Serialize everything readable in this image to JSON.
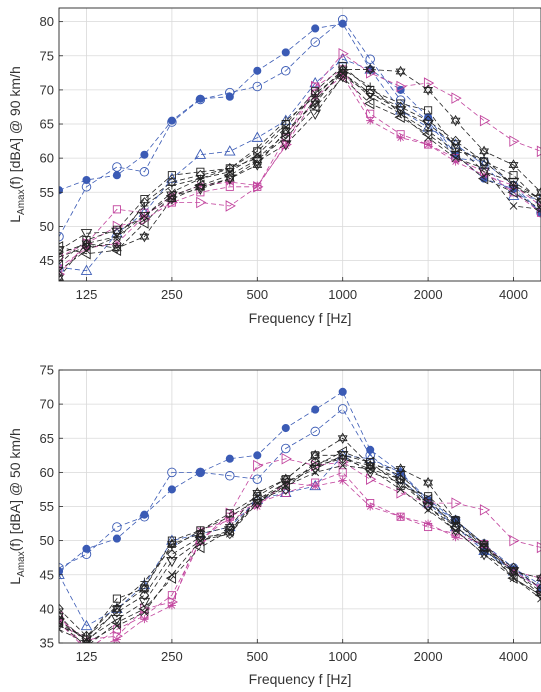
{
  "chart_data": [
    {
      "type": "line",
      "xscale": "log",
      "xlim": [
        100,
        5000
      ],
      "ylim": [
        42,
        82
      ],
      "grid": true,
      "xticks": [
        125,
        250,
        500,
        1000,
        2000,
        4000
      ],
      "xtick_labels": [
        "125",
        "250",
        "500",
        "1000",
        "2000",
        "4000"
      ],
      "yticks": [
        45,
        50,
        55,
        60,
        65,
        70,
        75,
        80
      ],
      "ytick_labels": [
        "45",
        "50",
        "55",
        "60",
        "65",
        "70",
        "75",
        "80"
      ],
      "xlabel": "Frequency f [Hz]",
      "ylabel_main": "L",
      "ylabel_sub": "Amax",
      "ylabel_rest": "(f) [dBA] @ 90 km/h",
      "x": [
        100,
        125,
        160,
        200,
        250,
        315,
        400,
        500,
        630,
        800,
        1000,
        1250,
        1600,
        2000,
        2500,
        3150,
        4000,
        5000
      ],
      "series": [
        {
          "color": "#3b5bb5",
          "marker": "filled-circle",
          "values": [
            55.3,
            56.8,
            57.5,
            60.5,
            65.5,
            68.7,
            69.0,
            72.8,
            75.5,
            79.0,
            79.7,
            73.0,
            70.0,
            66.0,
            60.5,
            57.0,
            55.5,
            52.0
          ]
        },
        {
          "color": "#3b5bb5",
          "marker": "open-circle",
          "values": [
            48.5,
            55.8,
            58.7,
            58.0,
            65.3,
            68.6,
            69.6,
            70.5,
            72.8,
            77.0,
            80.3,
            74.5,
            68.5,
            65.5,
            60.0,
            59.5,
            56.0,
            52.0
          ]
        },
        {
          "color": "#3b5bb5",
          "marker": "triangle-up",
          "values": [
            44.0,
            43.5,
            49.0,
            52.0,
            57.0,
            60.5,
            61.0,
            63.0,
            65.5,
            71.0,
            74.5,
            73.0,
            67.0,
            64.5,
            62.0,
            59.0,
            54.5,
            54.0
          ]
        },
        {
          "color": "#c2459e",
          "marker": "triangle-right",
          "values": [
            43.0,
            47.5,
            50.0,
            51.0,
            53.5,
            53.5,
            53.0,
            55.8,
            62.0,
            70.5,
            75.3,
            72.5,
            70.5,
            71.0,
            68.8,
            65.5,
            62.5,
            61.0
          ]
        },
        {
          "color": "#c2459e",
          "marker": "asterisk",
          "values": [
            44.0,
            46.8,
            47.5,
            51.5,
            54.5,
            56.0,
            56.5,
            56.0,
            61.8,
            69.0,
            72.0,
            65.5,
            63.0,
            62.0,
            59.5,
            57.5,
            56.0,
            53.0
          ]
        },
        {
          "color": "#c2459e",
          "marker": "square",
          "values": [
            45.5,
            47.5,
            52.5,
            52.0,
            53.5,
            55.0,
            55.8,
            55.8,
            63.0,
            70.5,
            73.0,
            66.5,
            63.5,
            62.0,
            60.0,
            58.0,
            55.0,
            52.0
          ]
        },
        {
          "color": "#222222",
          "marker": "triangle-down",
          "values": [
            46.5,
            49.0,
            49.2,
            51.5,
            54.5,
            55.5,
            57.0,
            59.5,
            62.0,
            66.5,
            72.0,
            69.5,
            67.0,
            65.0,
            62.0,
            58.0,
            56.5,
            54.0
          ]
        },
        {
          "color": "#222222",
          "marker": "diamond",
          "values": [
            45.5,
            47.0,
            47.5,
            53.5,
            56.5,
            57.5,
            58.5,
            60.0,
            63.5,
            68.5,
            72.5,
            69.5,
            67.5,
            65.5,
            62.5,
            59.5,
            56.0,
            53.5
          ]
        },
        {
          "color": "#222222",
          "marker": "hexagram",
          "values": [
            42.5,
            47.5,
            46.8,
            48.5,
            54.0,
            55.8,
            57.0,
            59.0,
            64.0,
            68.0,
            73.0,
            73.0,
            72.7,
            70.0,
            65.5,
            61.0,
            59.0,
            55.0
          ]
        },
        {
          "color": "#222222",
          "marker": "triangle-left",
          "values": [
            47.0,
            46.0,
            46.5,
            50.5,
            54.5,
            56.0,
            57.5,
            59.8,
            63.0,
            67.5,
            71.8,
            68.0,
            66.0,
            63.5,
            60.5,
            57.0,
            55.0,
            52.5
          ]
        },
        {
          "color": "#222222",
          "marker": "x",
          "values": [
            43.5,
            46.5,
            48.5,
            51.5,
            55.0,
            57.0,
            58.0,
            60.5,
            64.5,
            69.5,
            72.5,
            69.0,
            66.5,
            63.0,
            60.0,
            58.5,
            53.0,
            52.5
          ]
        },
        {
          "color": "#222222",
          "marker": "square",
          "values": [
            44.5,
            48.0,
            49.5,
            54.0,
            57.5,
            58.0,
            58.5,
            61.0,
            65.0,
            69.8,
            73.5,
            70.0,
            68.0,
            67.0,
            61.5,
            59.5,
            57.5,
            53.5
          ]
        },
        {
          "color": "#222222",
          "marker": "plus",
          "values": [
            46.0,
            47.5,
            48.5,
            53.0,
            56.0,
            57.0,
            58.5,
            61.5,
            65.5,
            69.0,
            73.0,
            70.5,
            66.5,
            64.0,
            61.0,
            60.0,
            56.0,
            54.0
          ]
        }
      ]
    },
    {
      "type": "line",
      "xscale": "log",
      "xlim": [
        100,
        5000
      ],
      "ylim": [
        35,
        75
      ],
      "grid": true,
      "xticks": [
        125,
        250,
        500,
        1000,
        2000,
        4000
      ],
      "xtick_labels": [
        "125",
        "250",
        "500",
        "1000",
        "2000",
        "4000"
      ],
      "yticks": [
        35,
        40,
        45,
        50,
        55,
        60,
        65,
        70,
        75
      ],
      "ytick_labels": [
        "35",
        "40",
        "45",
        "50",
        "55",
        "60",
        "65",
        "70",
        "75"
      ],
      "xlabel": "Frequency f [Hz]",
      "ylabel_main": "L",
      "ylabel_sub": "Amax",
      "ylabel_rest": "(f) [dBA] @ 50 km/h",
      "x": [
        100,
        125,
        160,
        200,
        250,
        315,
        400,
        500,
        630,
        800,
        1000,
        1250,
        1600,
        2000,
        2500,
        3150,
        4000,
        5000
      ],
      "series": [
        {
          "color": "#3b5bb5",
          "marker": "filled-circle",
          "values": [
            45.5,
            48.8,
            50.3,
            53.8,
            57.5,
            60.0,
            62.0,
            62.5,
            66.5,
            69.2,
            71.8,
            63.3,
            60.0,
            56.0,
            53.0,
            48.5,
            45.8,
            43.0
          ]
        },
        {
          "color": "#3b5bb5",
          "marker": "open-circle",
          "values": [
            46.0,
            48.0,
            52.0,
            53.5,
            60.0,
            60.0,
            59.5,
            59.0,
            63.5,
            66.0,
            69.3,
            62.5,
            59.0,
            55.5,
            53.0,
            49.5,
            46.0,
            43.5
          ]
        },
        {
          "color": "#3b5bb5",
          "marker": "triangle-up",
          "values": [
            45.0,
            37.5,
            40.0,
            43.5,
            50.0,
            51.0,
            52.0,
            56.0,
            57.0,
            58.0,
            62.5,
            62.0,
            60.0,
            55.5,
            52.0,
            48.5,
            45.5,
            43.0
          ]
        },
        {
          "color": "#c2459e",
          "marker": "triangle-right",
          "values": [
            38.5,
            35.5,
            36.0,
            40.0,
            41.0,
            50.0,
            54.0,
            61.0,
            62.0,
            61.0,
            61.5,
            59.0,
            57.0,
            55.5,
            55.5,
            54.5,
            50.0,
            49.0
          ]
        },
        {
          "color": "#c2459e",
          "marker": "asterisk",
          "values": [
            38.0,
            34.0,
            35.5,
            38.5,
            40.5,
            51.5,
            53.0,
            55.0,
            58.5,
            58.0,
            58.8,
            55.0,
            53.5,
            52.5,
            50.5,
            49.5,
            45.5,
            44.5
          ]
        },
        {
          "color": "#c2459e",
          "marker": "square",
          "values": [
            39.0,
            34.0,
            37.0,
            39.0,
            42.0,
            50.0,
            53.5,
            55.5,
            57.0,
            58.5,
            60.0,
            55.5,
            53.5,
            52.0,
            51.0,
            49.5,
            45.5,
            43.0
          ]
        },
        {
          "color": "#222222",
          "marker": "triangle-down",
          "values": [
            38.0,
            35.5,
            38.5,
            41.0,
            47.0,
            50.0,
            51.5,
            55.5,
            58.5,
            60.5,
            62.5,
            60.0,
            58.5,
            55.0,
            51.5,
            48.0,
            45.5,
            42.0
          ]
        },
        {
          "color": "#222222",
          "marker": "diamond",
          "values": [
            40.0,
            36.0,
            39.5,
            42.0,
            48.0,
            50.5,
            51.0,
            56.0,
            57.5,
            61.5,
            62.0,
            60.5,
            59.0,
            55.0,
            52.0,
            49.0,
            46.0,
            43.0
          ]
        },
        {
          "color": "#222222",
          "marker": "hexagram",
          "values": [
            39.0,
            35.0,
            40.0,
            43.0,
            49.5,
            51.0,
            52.0,
            57.0,
            59.0,
            62.5,
            65.0,
            61.0,
            60.5,
            58.5,
            53.0,
            49.5,
            45.5,
            44.5
          ]
        },
        {
          "color": "#222222",
          "marker": "triangle-left",
          "values": [
            38.0,
            34.5,
            38.0,
            40.0,
            44.5,
            49.0,
            51.5,
            56.0,
            58.0,
            61.0,
            63.0,
            61.5,
            59.5,
            56.0,
            52.0,
            49.0,
            44.5,
            42.0
          ]
        },
        {
          "color": "#222222",
          "marker": "x",
          "values": [
            37.0,
            35.0,
            37.5,
            39.5,
            45.0,
            50.0,
            51.0,
            55.5,
            58.0,
            60.0,
            61.0,
            60.5,
            57.5,
            54.5,
            51.5,
            48.0,
            44.5,
            41.5
          ]
        },
        {
          "color": "#222222",
          "marker": "square",
          "values": [
            38.3,
            35.5,
            41.5,
            43.0,
            50.0,
            51.5,
            54.0,
            56.5,
            59.0,
            62.5,
            62.5,
            61.5,
            58.0,
            56.5,
            53.0,
            49.0,
            45.5,
            42.5
          ]
        },
        {
          "color": "#222222",
          "marker": "plus",
          "values": [
            37.5,
            36.0,
            40.5,
            44.0,
            49.0,
            51.5,
            53.5,
            56.0,
            58.5,
            61.0,
            62.0,
            61.0,
            59.0,
            55.5,
            52.5,
            49.5,
            44.5,
            42.0
          ]
        }
      ]
    }
  ]
}
